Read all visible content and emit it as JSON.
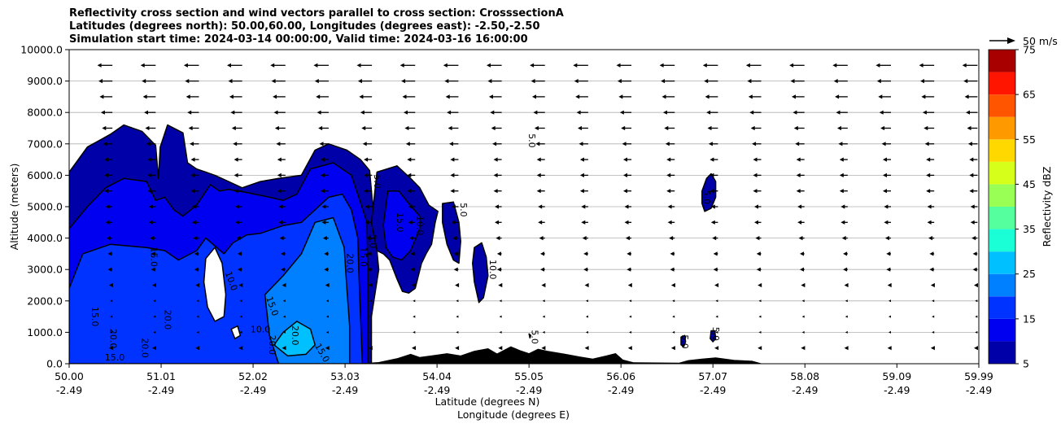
{
  "chart_data": {
    "type": "filled-contour",
    "title_lines": [
      "Reflectivity cross section and wind vectors parallel to cross section: CrosssectionA",
      "Latitudes (degrees north): 50.00,60.00, Longitudes (degrees east): -2.50,-2.50",
      "Simulation start time: 2024-03-14 00:00:00, Valid time: 2024-03-16 16:00:00"
    ],
    "ylabel": "Altitude (meters)",
    "xlabel_lat": "Latitude (degrees N)",
    "xlabel_lon": "Longitude (degrees E)",
    "ylim": [
      0,
      10000
    ],
    "xlim": [
      50.0,
      59.99
    ],
    "yticks": [
      {
        "value": 0,
        "label": "0.0"
      },
      {
        "value": 1000,
        "label": "1000.0"
      },
      {
        "value": 2000,
        "label": "2000.0"
      },
      {
        "value": 3000,
        "label": "3000.0"
      },
      {
        "value": 4000,
        "label": "4000.0"
      },
      {
        "value": 5000,
        "label": "5000.0"
      },
      {
        "value": 6000,
        "label": "6000.0"
      },
      {
        "value": 7000,
        "label": "7000.0"
      },
      {
        "value": 8000,
        "label": "8000.0"
      },
      {
        "value": 9000,
        "label": "9000.0"
      },
      {
        "value": 10000,
        "label": "10000.0"
      }
    ],
    "xticks": [
      {
        "value": 50.0,
        "lat": "50.00",
        "lon": "-2.49"
      },
      {
        "value": 51.01,
        "lat": "51.01",
        "lon": "-2.49"
      },
      {
        "value": 52.02,
        "lat": "52.02",
        "lon": "-2.49"
      },
      {
        "value": 53.03,
        "lat": "53.03",
        "lon": "-2.49"
      },
      {
        "value": 54.04,
        "lat": "54.04",
        "lon": "-2.49"
      },
      {
        "value": 55.05,
        "lat": "55.05",
        "lon": "-2.49"
      },
      {
        "value": 56.06,
        "lat": "56.06",
        "lon": "-2.49"
      },
      {
        "value": 57.07,
        "lat": "57.07",
        "lon": "-2.49"
      },
      {
        "value": 58.08,
        "lat": "58.08",
        "lon": "-2.49"
      },
      {
        "value": 59.09,
        "lat": "59.09",
        "lon": "-2.49"
      },
      {
        "value": 59.99,
        "lat": "59.99",
        "lon": "-2.49"
      }
    ],
    "colorbar": {
      "label": "Reflectivity dBZ",
      "levels": [
        5,
        10,
        15,
        20,
        25,
        30,
        35,
        40,
        45,
        50,
        55,
        60,
        65,
        70,
        75
      ],
      "colors": [
        "#0000a8",
        "#0000f0",
        "#0033ff",
        "#0080ff",
        "#00c0ff",
        "#1affd6",
        "#55ff9e",
        "#99ff55",
        "#d6ff1a",
        "#ffd800",
        "#ff9900",
        "#ff5500",
        "#ff1500",
        "#a80000"
      ],
      "tick_labels": [
        "5",
        "15",
        "25",
        "35",
        "45",
        "55",
        "65",
        "75"
      ]
    },
    "wind_key": {
      "label": "50 m/s",
      "speed": 50
    },
    "wind_vectors": {
      "rows": [
        {
          "alt": 9500,
          "speed": 13
        },
        {
          "alt": 9000,
          "speed": 12
        },
        {
          "alt": 8500,
          "speed": 11
        },
        {
          "alt": 8000,
          "speed": 10
        },
        {
          "alt": 7500,
          "speed": 9
        },
        {
          "alt": 7000,
          "speed": 8
        },
        {
          "alt": 6500,
          "speed": 7
        },
        {
          "alt": 6000,
          "speed": 7
        },
        {
          "alt": 5500,
          "speed": 7
        },
        {
          "alt": 5000,
          "speed": 6
        },
        {
          "alt": 4500,
          "speed": 6
        },
        {
          "alt": 4000,
          "speed": 5
        },
        {
          "alt": 3500,
          "speed": 4
        },
        {
          "alt": 3000,
          "speed": 4
        },
        {
          "alt": 2500,
          "speed": 3
        },
        {
          "alt": 2000,
          "speed": 2
        },
        {
          "alt": 1500,
          "speed": 2
        },
        {
          "alt": 1000,
          "speed": 2
        },
        {
          "alt": 500,
          "speed": 3
        }
      ]
    },
    "reflectivity_regions": [
      {
        "level": 5,
        "points": [
          [
            50.0,
            6100
          ],
          [
            50.2,
            6900
          ],
          [
            50.45,
            7300
          ],
          [
            50.6,
            7600
          ],
          [
            50.8,
            7400
          ],
          [
            50.95,
            6950
          ],
          [
            50.98,
            5900
          ],
          [
            51.0,
            6900
          ],
          [
            51.08,
            7600
          ],
          [
            51.25,
            7350
          ],
          [
            51.3,
            6400
          ],
          [
            51.4,
            6200
          ],
          [
            51.5,
            6100
          ],
          [
            51.6,
            6000
          ],
          [
            51.75,
            5800
          ],
          [
            51.9,
            5600
          ],
          [
            52.1,
            5800
          ],
          [
            52.3,
            5900
          ],
          [
            52.55,
            6000
          ],
          [
            52.7,
            6800
          ],
          [
            52.85,
            7000
          ],
          [
            53.05,
            6800
          ],
          [
            53.2,
            6500
          ],
          [
            53.3,
            6150
          ],
          [
            53.35,
            4500
          ],
          [
            53.4,
            3000
          ],
          [
            53.32,
            1500
          ],
          [
            53.32,
            0
          ],
          [
            50.0,
            0
          ]
        ]
      },
      {
        "level": 10,
        "points": [
          [
            50.0,
            4300
          ],
          [
            50.2,
            5000
          ],
          [
            50.4,
            5600
          ],
          [
            50.6,
            5900
          ],
          [
            50.85,
            5800
          ],
          [
            50.95,
            5200
          ],
          [
            51.05,
            5300
          ],
          [
            51.15,
            4900
          ],
          [
            51.25,
            4700
          ],
          [
            51.4,
            5050
          ],
          [
            51.55,
            5700
          ],
          [
            51.65,
            5500
          ],
          [
            51.75,
            5550
          ],
          [
            51.95,
            5450
          ],
          [
            52.2,
            5300
          ],
          [
            52.35,
            5200
          ],
          [
            52.5,
            5400
          ],
          [
            52.65,
            6200
          ],
          [
            52.9,
            6400
          ],
          [
            53.1,
            6000
          ],
          [
            53.18,
            5300
          ],
          [
            53.27,
            4500
          ],
          [
            53.28,
            3000
          ],
          [
            53.28,
            1500
          ],
          [
            53.28,
            0
          ],
          [
            50.0,
            0
          ]
        ]
      },
      {
        "level": 15,
        "points": [
          [
            50.0,
            2400
          ],
          [
            50.15,
            3500
          ],
          [
            50.45,
            3800
          ],
          [
            50.85,
            3700
          ],
          [
            51.05,
            3600
          ],
          [
            51.2,
            3300
          ],
          [
            51.4,
            3600
          ],
          [
            51.5,
            4000
          ],
          [
            51.62,
            3700
          ],
          [
            51.7,
            3500
          ],
          [
            51.8,
            3850
          ],
          [
            51.95,
            4100
          ],
          [
            52.1,
            4150
          ],
          [
            52.35,
            4400
          ],
          [
            52.55,
            4500
          ],
          [
            52.7,
            4900
          ],
          [
            52.85,
            5300
          ],
          [
            53.0,
            5400
          ],
          [
            53.1,
            4900
          ],
          [
            53.17,
            4000
          ],
          [
            53.18,
            3000
          ],
          [
            53.2,
            1500
          ],
          [
            53.22,
            0
          ],
          [
            50.0,
            0
          ]
        ]
      },
      {
        "level": 20,
        "points": [
          [
            52.15,
            2200
          ],
          [
            52.35,
            2800
          ],
          [
            52.55,
            3500
          ],
          [
            52.7,
            4500
          ],
          [
            52.9,
            4650
          ],
          [
            53.02,
            3700
          ],
          [
            53.05,
            2400
          ],
          [
            53.08,
            1200
          ],
          [
            53.08,
            0
          ],
          [
            52.3,
            0
          ],
          [
            52.2,
            900
          ]
        ]
      },
      {
        "level": 25,
        "points": [
          [
            52.25,
            600
          ],
          [
            52.35,
            1000
          ],
          [
            52.5,
            1350
          ],
          [
            52.65,
            1100
          ],
          [
            52.7,
            600
          ],
          [
            52.6,
            300
          ],
          [
            52.4,
            250
          ]
        ]
      },
      {
        "level": 5,
        "points": [
          [
            53.38,
            6100
          ],
          [
            53.6,
            6300
          ],
          [
            53.75,
            5900
          ],
          [
            53.85,
            5600
          ],
          [
            53.95,
            5050
          ],
          [
            54.05,
            4850
          ],
          [
            54.02,
            4500
          ],
          [
            53.98,
            3800
          ],
          [
            53.92,
            3500
          ],
          [
            53.87,
            3200
          ],
          [
            53.8,
            2400
          ],
          [
            53.73,
            2250
          ],
          [
            53.66,
            2300
          ],
          [
            53.6,
            2700
          ],
          [
            53.52,
            3300
          ],
          [
            53.45,
            3500
          ],
          [
            53.38,
            3600
          ],
          [
            53.32,
            4500
          ]
        ]
      },
      {
        "level": 10,
        "points": [
          [
            53.5,
            5500
          ],
          [
            53.62,
            5500
          ],
          [
            53.73,
            5100
          ],
          [
            53.85,
            4700
          ],
          [
            53.85,
            4300
          ],
          [
            53.75,
            3600
          ],
          [
            53.65,
            3300
          ],
          [
            53.55,
            3400
          ],
          [
            53.48,
            3700
          ],
          [
            53.45,
            4400
          ]
        ]
      },
      {
        "level": 5,
        "points": [
          [
            54.1,
            5100
          ],
          [
            54.22,
            5150
          ],
          [
            54.28,
            4500
          ],
          [
            54.3,
            3900
          ],
          [
            54.28,
            3200
          ],
          [
            54.22,
            3300
          ],
          [
            54.15,
            3800
          ],
          [
            54.1,
            4500
          ]
        ]
      },
      {
        "level": 5,
        "points": [
          [
            54.45,
            3700
          ],
          [
            54.53,
            3850
          ],
          [
            54.58,
            3400
          ],
          [
            54.6,
            2800
          ],
          [
            54.55,
            2100
          ],
          [
            54.5,
            1950
          ],
          [
            54.45,
            2600
          ],
          [
            54.43,
            3200
          ]
        ]
      },
      {
        "level": 5,
        "points": [
          [
            56.95,
            5500
          ],
          [
            57.0,
            5900
          ],
          [
            57.05,
            6050
          ],
          [
            57.1,
            5800
          ],
          [
            57.1,
            5300
          ],
          [
            57.05,
            4950
          ],
          [
            56.98,
            4850
          ],
          [
            56.95,
            5100
          ]
        ]
      },
      {
        "level": 5,
        "points": [
          [
            56.72,
            850
          ],
          [
            56.76,
            900
          ],
          [
            56.77,
            700
          ],
          [
            56.75,
            550
          ],
          [
            56.72,
            600
          ]
        ]
      },
      {
        "level": 5,
        "points": [
          [
            57.05,
            1050
          ],
          [
            57.09,
            1050
          ],
          [
            57.1,
            800
          ],
          [
            57.07,
            700
          ],
          [
            57.04,
            800
          ]
        ]
      },
      {
        "level": 5,
        "points": [
          [
            55.05,
            950
          ],
          [
            55.07,
            900
          ],
          [
            55.06,
            820
          ]
        ]
      }
    ],
    "clear_regions": [
      {
        "points": [
          [
            51.5,
            3350
          ],
          [
            51.6,
            3700
          ],
          [
            51.68,
            3200
          ],
          [
            51.72,
            2200
          ],
          [
            51.7,
            1500
          ],
          [
            51.6,
            1350
          ],
          [
            51.52,
            1800
          ],
          [
            51.48,
            2600
          ]
        ]
      },
      {
        "points": [
          [
            51.78,
            1100
          ],
          [
            51.85,
            1200
          ],
          [
            51.88,
            900
          ],
          [
            51.82,
            800
          ]
        ]
      }
    ],
    "contour_labels": [
      {
        "text": "5.0",
        "x": 53.35,
        "alt": 5800,
        "rotate": 90
      },
      {
        "text": "5.0",
        "x": 54.3,
        "alt": 4900,
        "rotate": 90
      },
      {
        "text": "5.0",
        "x": 55.05,
        "alt": 7100,
        "rotate": 90
      },
      {
        "text": "5.0",
        "x": 56.97,
        "alt": 5300,
        "rotate": 90
      },
      {
        "text": "5.0",
        "x": 55.08,
        "alt": 850,
        "rotate": 90
      },
      {
        "text": "5.0",
        "x": 56.73,
        "alt": 700,
        "rotate": 90
      },
      {
        "text": "5.0",
        "x": 57.07,
        "alt": 950,
        "rotate": 90
      },
      {
        "text": "5.0",
        "x": 53.3,
        "alt": 3900,
        "rotate": 90
      },
      {
        "text": "10.0",
        "x": 53.82,
        "alt": 4400,
        "rotate": 90
      },
      {
        "text": "10.0",
        "x": 54.62,
        "alt": 3000,
        "rotate": 90
      },
      {
        "text": "10.0",
        "x": 51.75,
        "alt": 2600,
        "rotate": 70
      },
      {
        "text": "10.0",
        "x": 52.1,
        "alt": 1000,
        "rotate": 0
      },
      {
        "text": "15.0",
        "x": 53.6,
        "alt": 4500,
        "rotate": 90
      },
      {
        "text": "15.0",
        "x": 53.2,
        "alt": 3400,
        "rotate": 90
      },
      {
        "text": "15.0",
        "x": 50.9,
        "alt": 3400,
        "rotate": 90
      },
      {
        "text": "15.0",
        "x": 52.2,
        "alt": 1800,
        "rotate": 70
      },
      {
        "text": "15.0",
        "x": 50.25,
        "alt": 1500,
        "rotate": 90
      },
      {
        "text": "15.0",
        "x": 50.5,
        "alt": 100,
        "rotate": 0
      },
      {
        "text": "20.0",
        "x": 53.05,
        "alt": 3200,
        "rotate": 90
      },
      {
        "text": "20.0",
        "x": 52.45,
        "alt": 900,
        "rotate": 90
      },
      {
        "text": "20.0",
        "x": 50.45,
        "alt": 800,
        "rotate": 90
      },
      {
        "text": "20.0",
        "x": 51.05,
        "alt": 1400,
        "rotate": 90
      },
      {
        "text": "20.0",
        "x": 52.2,
        "alt": 600,
        "rotate": 90
      },
      {
        "text": "15.0",
        "x": 52.75,
        "alt": 300,
        "rotate": 60
      },
      {
        "text": "20.0",
        "x": 50.8,
        "alt": 500,
        "rotate": 90
      }
    ],
    "terrain": [
      [
        50.0,
        0
      ],
      [
        53.2,
        0
      ],
      [
        53.4,
        40
      ],
      [
        53.6,
        160
      ],
      [
        53.75,
        300
      ],
      [
        53.85,
        200
      ],
      [
        54.0,
        260
      ],
      [
        54.15,
        320
      ],
      [
        54.3,
        250
      ],
      [
        54.45,
        400
      ],
      [
        54.6,
        480
      ],
      [
        54.7,
        310
      ],
      [
        54.85,
        540
      ],
      [
        54.95,
        420
      ],
      [
        55.05,
        320
      ],
      [
        55.15,
        460
      ],
      [
        55.25,
        400
      ],
      [
        55.45,
        300
      ],
      [
        55.6,
        220
      ],
      [
        55.75,
        150
      ],
      [
        55.9,
        250
      ],
      [
        56.0,
        320
      ],
      [
        56.08,
        120
      ],
      [
        56.2,
        30
      ],
      [
        56.7,
        20
      ],
      [
        56.8,
        100
      ],
      [
        56.95,
        150
      ],
      [
        57.1,
        190
      ],
      [
        57.3,
        110
      ],
      [
        57.5,
        80
      ],
      [
        57.6,
        0
      ],
      [
        59.99,
        0
      ]
    ]
  }
}
